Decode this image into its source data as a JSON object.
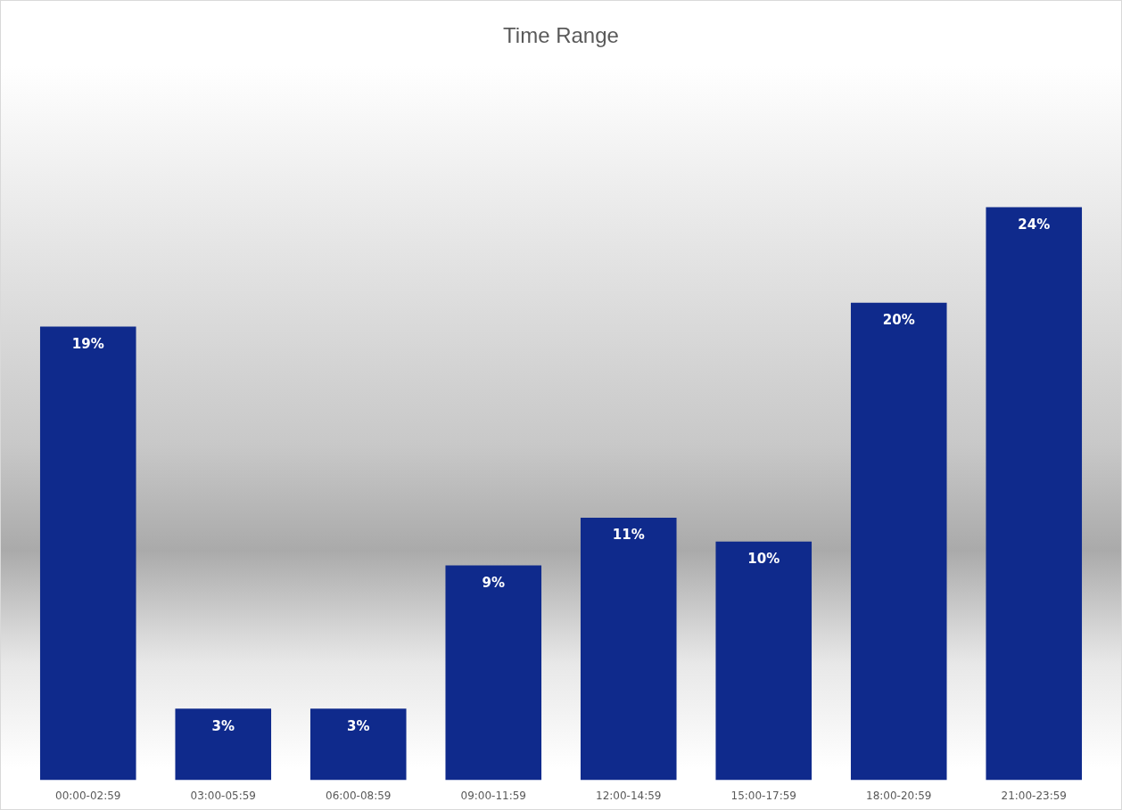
{
  "chart_data": {
    "type": "bar",
    "title": "Time Range",
    "categories": [
      "00:00-02:59",
      "03:00-05:59",
      "06:00-08:59",
      "09:00-11:59",
      "12:00-14:59",
      "15:00-17:59",
      "18:00-20:59",
      "21:00-23:59"
    ],
    "values": [
      19,
      3,
      3,
      9,
      11,
      10,
      20,
      24
    ],
    "value_labels": [
      "19%",
      "3%",
      "3%",
      "9%",
      "11%",
      "10%",
      "20%",
      "24%"
    ],
    "color": "#0f2a8c"
  }
}
